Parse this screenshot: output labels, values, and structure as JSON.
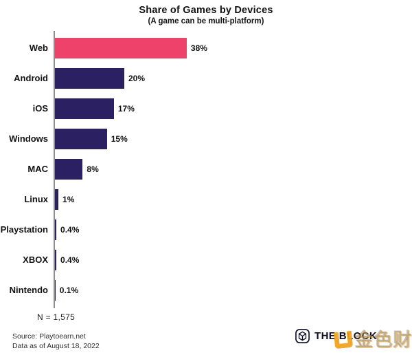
{
  "header": {
    "title": "Share of Games by Devices",
    "subtitle": "(A game can be multi-platform)"
  },
  "chart_data": {
    "type": "bar",
    "orientation": "horizontal",
    "title": "Share of Games by Devices",
    "subtitle": "(A game can be multi-platform)",
    "categories": [
      "Web",
      "Android",
      "iOS",
      "Windows",
      "MAC",
      "Linux",
      "Playstation",
      "XBOX",
      "Nintendo"
    ],
    "values": [
      38,
      20,
      17,
      15,
      8,
      1,
      0.4,
      0.4,
      0.1
    ],
    "value_labels": [
      "38%",
      "20%",
      "17%",
      "15%",
      "8%",
      "1%",
      "0.4%",
      "0.4%",
      "0.1%"
    ],
    "xlabel": "",
    "ylabel": "",
    "xlim": [
      0,
      40
    ],
    "grid": false,
    "legend": false,
    "highlight_category": "Web",
    "highlight_color": "#EF426B",
    "bar_color": "#2B2162",
    "axis_color": "#8e8e8e",
    "sample_size_note": "N = 1,575"
  },
  "footer": {
    "sample_note": "N = 1,575",
    "source_line1": "Source: Playtoearn.net",
    "source_line2": "Data as of August 18, 2022",
    "brand": "THE BLOCK",
    "watermark": "金色财经"
  },
  "icons": {
    "brand_cube": "the-block-cube-icon",
    "watermark_logo": "jinse-u-mark-icon"
  }
}
